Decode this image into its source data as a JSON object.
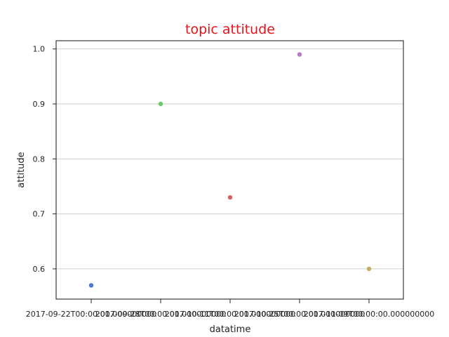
{
  "chart_data": {
    "type": "scatter",
    "title": "topic attitude",
    "xlabel": "datatime",
    "ylabel": "attitude",
    "x": [
      "2017-09-22T00:00:00.000000000",
      "2017-09-28T00:00:00.000000000",
      "2017-10-11T00:00:00.000000000",
      "2017-10-25T00:00:00.000000000",
      "2017-11-09T00:00:00.000000000"
    ],
    "values": [
      0.57,
      0.9,
      0.73,
      0.99,
      0.6
    ],
    "colors": [
      "#4878cf",
      "#6acc65",
      "#d65f5f",
      "#b47cc7",
      "#c4ad66"
    ],
    "yticks": [
      0.6,
      0.7,
      0.8,
      0.9,
      1.0
    ],
    "ylim": [
      0.545,
      1.015
    ],
    "grid": "horizontal",
    "colors_meta": {
      "title": "#e8121b"
    }
  }
}
